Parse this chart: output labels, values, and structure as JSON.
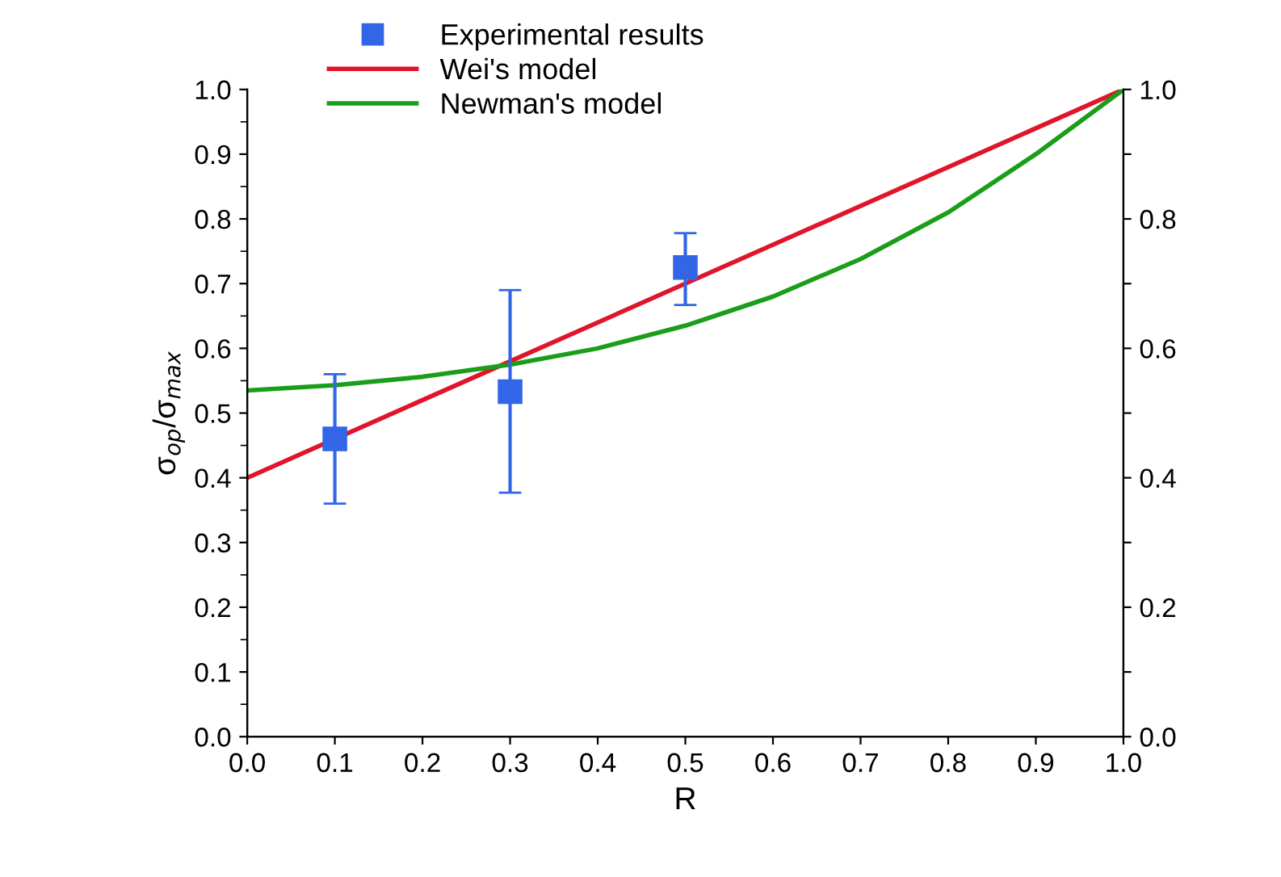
{
  "chart_data": {
    "type": "line",
    "xlabel": "R",
    "ylabel": "σ$_{op}$/σ$_{max}$",
    "xlim": [
      0.0,
      1.0
    ],
    "ylim": [
      0.0,
      1.0
    ],
    "y2lim": [
      0.0,
      1.0
    ],
    "xticks": [
      {
        "value": 0.0,
        "label": "0.0"
      },
      {
        "value": 0.1,
        "label": "0.1"
      },
      {
        "value": 0.2,
        "label": "0.2"
      },
      {
        "value": 0.3,
        "label": "0.3"
      },
      {
        "value": 0.4,
        "label": "0.4"
      },
      {
        "value": 0.5,
        "label": "0.5"
      },
      {
        "value": 0.6,
        "label": "0.6"
      },
      {
        "value": 0.7,
        "label": "0.7"
      },
      {
        "value": 0.8,
        "label": "0.8"
      },
      {
        "value": 0.9,
        "label": "0.9"
      },
      {
        "value": 1.0,
        "label": "1.0"
      }
    ],
    "yticks": [
      {
        "value": 0.0,
        "label": "0.0"
      },
      {
        "value": 0.1,
        "label": "0.1"
      },
      {
        "value": 0.2,
        "label": "0.2"
      },
      {
        "value": 0.3,
        "label": "0.3"
      },
      {
        "value": 0.4,
        "label": "0.4"
      },
      {
        "value": 0.5,
        "label": "0.5"
      },
      {
        "value": 0.6,
        "label": "0.6"
      },
      {
        "value": 0.7,
        "label": "0.7"
      },
      {
        "value": 0.8,
        "label": "0.8"
      },
      {
        "value": 0.9,
        "label": "0.9"
      },
      {
        "value": 1.0,
        "label": "1.0"
      }
    ],
    "y2ticks": [
      {
        "value": 0.0,
        "label": "0.0"
      },
      {
        "value": 0.1,
        "label": null
      },
      {
        "value": 0.2,
        "label": "0.2"
      },
      {
        "value": 0.3,
        "label": null
      },
      {
        "value": 0.4,
        "label": "0.4"
      },
      {
        "value": 0.5,
        "label": null
      },
      {
        "value": 0.6,
        "label": "0.6"
      },
      {
        "value": 0.7,
        "label": null
      },
      {
        "value": 0.8,
        "label": "0.8"
      },
      {
        "value": 0.9,
        "label": null
      },
      {
        "value": 1.0,
        "label": "1.0"
      }
    ],
    "grid": false,
    "legend": "top",
    "series": [
      {
        "name": "Experimental results",
        "type": "scatter",
        "marker": "square",
        "color": "#3366e6",
        "x": [
          0.1,
          0.3,
          0.5
        ],
        "values": [
          0.46,
          0.533,
          0.725
        ],
        "errors": [
          [
            0.36,
            0.56
          ],
          [
            0.377,
            0.69
          ],
          [
            0.667,
            0.778
          ]
        ]
      },
      {
        "name": "Wei's model",
        "type": "line",
        "color": "#e0142a",
        "x": [
          0.0,
          1.0
        ],
        "values": [
          0.4,
          1.0
        ]
      },
      {
        "name": "Newman's model",
        "type": "line",
        "color": "#1a9e1a",
        "x": [
          0.0,
          0.1,
          0.2,
          0.3,
          0.4,
          0.5,
          0.6,
          0.7,
          0.8,
          0.9,
          1.0
        ],
        "values": [
          0.535,
          0.543,
          0.556,
          0.575,
          0.6,
          0.635,
          0.68,
          0.738,
          0.81,
          0.9,
          1.0
        ]
      }
    ]
  }
}
